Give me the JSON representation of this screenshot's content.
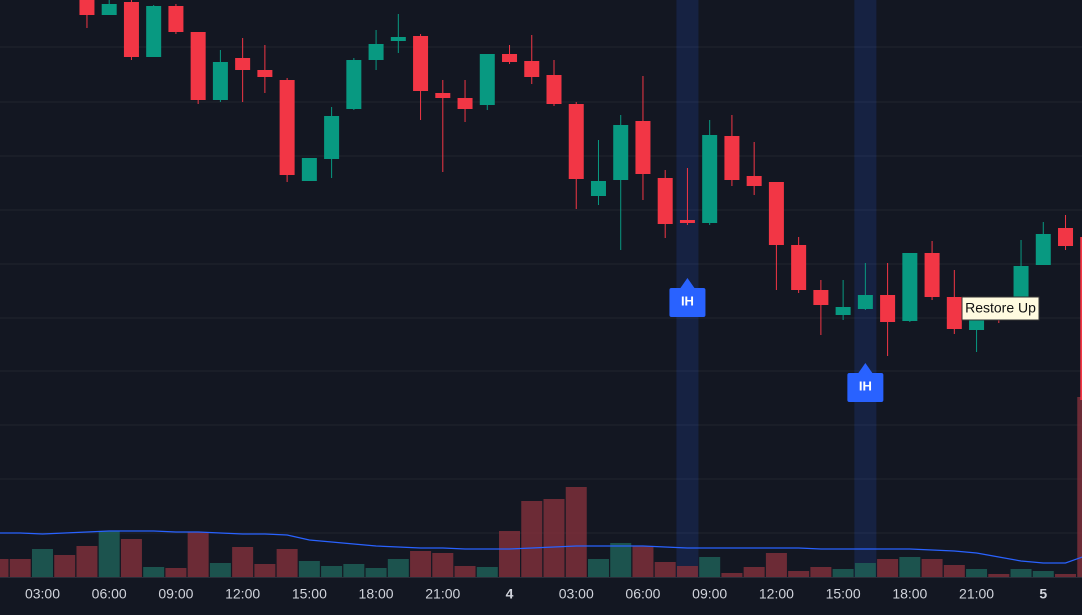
{
  "chart_data": {
    "type": "candlestick",
    "categories": [
      null,
      null,
      "03:00",
      null,
      null,
      "06:00",
      null,
      null,
      "09:00",
      null,
      null,
      "12:00",
      null,
      null,
      "15:00",
      null,
      null,
      "18:00",
      null,
      null,
      "21:00",
      null,
      null,
      "4",
      null,
      null,
      "03:00",
      null,
      null,
      "06:00",
      null,
      null,
      "09:00",
      null,
      null,
      "12:00",
      null,
      null,
      "15:00",
      null,
      null,
      "18:00",
      null,
      null,
      "21:00",
      null,
      null,
      "5",
      null,
      null
    ],
    "open": [
      null,
      null,
      null,
      null,
      600,
      585,
      598,
      543,
      594,
      568,
      500,
      542,
      530,
      520,
      419,
      441,
      491,
      540,
      559,
      564,
      507,
      502,
      495,
      546,
      539,
      525,
      496,
      404,
      420,
      479,
      422,
      380,
      377,
      464,
      424,
      418,
      355,
      310,
      285,
      291,
      305,
      279,
      347,
      303,
      270,
      300,
      300,
      335,
      372,
      363
    ],
    "high": [
      null,
      null,
      null,
      null,
      600,
      600,
      600,
      595,
      596,
      568,
      550,
      562,
      555,
      522,
      442,
      493,
      542,
      570,
      586,
      566,
      520,
      520,
      546,
      555,
      565,
      540,
      498,
      460,
      485,
      524,
      430,
      432,
      480,
      485,
      458,
      418,
      363,
      320,
      320,
      337,
      337,
      347,
      359,
      330,
      300,
      300,
      360,
      378,
      385,
      363
    ],
    "low": [
      null,
      null,
      null,
      null,
      572,
      585,
      540,
      543,
      566,
      496,
      498,
      498,
      507,
      418,
      419,
      422,
      490,
      530,
      547,
      480,
      428,
      478,
      490,
      536,
      516,
      494,
      391,
      395,
      350,
      400,
      362,
      375,
      375,
      414,
      405,
      310,
      307,
      265,
      280,
      290,
      244,
      278,
      300,
      266,
      248,
      277,
      300,
      335,
      350,
      200
    ],
    "close": [
      null,
      null,
      null,
      null,
      585,
      596,
      543,
      594,
      568,
      500,
      538,
      530,
      523,
      425,
      442,
      484,
      540,
      556,
      563,
      509,
      502,
      491,
      546,
      538,
      523,
      496,
      421,
      419,
      475,
      426,
      376,
      377,
      465,
      420,
      414,
      355,
      310,
      295,
      293,
      305,
      278,
      347,
      303,
      271,
      295,
      292,
      334,
      366,
      354,
      200
    ],
    "up_color": "#089981",
    "down_color": "#f23645",
    "ylim": [
      0,
      600
    ],
    "volume": {
      "values": [
        18,
        18,
        28,
        22,
        31,
        46,
        38,
        10,
        9,
        45,
        14,
        30,
        13,
        28,
        16,
        11,
        13,
        9,
        18,
        26,
        24,
        11,
        10,
        46,
        76,
        78,
        90,
        18,
        34,
        31,
        15,
        11,
        20,
        4,
        10,
        24,
        6,
        10,
        8,
        14,
        18,
        20,
        18,
        12,
        8,
        3,
        8,
        6,
        3,
        180
      ],
      "colors": [
        "#7c2f3a",
        "#7c2f3a",
        "#1f5e56",
        "#7c2f3a",
        "#7c2f3a",
        "#1f5e56",
        "#7c2f3a",
        "#1f5e56",
        "#7c2f3a",
        "#7c2f3a",
        "#1f5e56",
        "#7c2f3a",
        "#7c2f3a",
        "#7c2f3a",
        "#1f5e56",
        "#1f5e56",
        "#1f5e56",
        "#1f5e56",
        "#1f5e56",
        "#7c2f3a",
        "#7c2f3a",
        "#7c2f3a",
        "#1f5e56",
        "#7c2f3a",
        "#7c2f3a",
        "#7c2f3a",
        "#7c2f3a",
        "#1f5e56",
        "#1f5e56",
        "#7c2f3a",
        "#7c2f3a",
        "#7c2f3a",
        "#1f5e56",
        "#7c2f3a",
        "#7c2f3a",
        "#7c2f3a",
        "#7c2f3a",
        "#7c2f3a",
        "#1f5e56",
        "#1f5e56",
        "#7c2f3a",
        "#1f5e56",
        "#7c2f3a",
        "#7c2f3a",
        "#1f5e56",
        "#7c2f3a",
        "#1f5e56",
        "#1f5e56",
        "#7c2f3a",
        "#7c2f3a"
      ],
      "y2lim": [
        0,
        577
      ]
    },
    "volume_ma": {
      "values": [
        44,
        44,
        43,
        44,
        45,
        46,
        46,
        46,
        45,
        45,
        44,
        43,
        43,
        42,
        37,
        35,
        33,
        31,
        30,
        29,
        29,
        28,
        28,
        28,
        29,
        30,
        31,
        31,
        31,
        31,
        30,
        29,
        29,
        29,
        29,
        29,
        29,
        28,
        28,
        28,
        28,
        28,
        27,
        26,
        24,
        20,
        16,
        14,
        14,
        22
      ],
      "color": "#2962ff"
    },
    "markers": [
      {
        "label": "IH",
        "at": 31
      },
      {
        "label": "IH",
        "at": 39
      }
    ],
    "marker_color": "#2962ff",
    "tooltip": "Restore Up"
  }
}
